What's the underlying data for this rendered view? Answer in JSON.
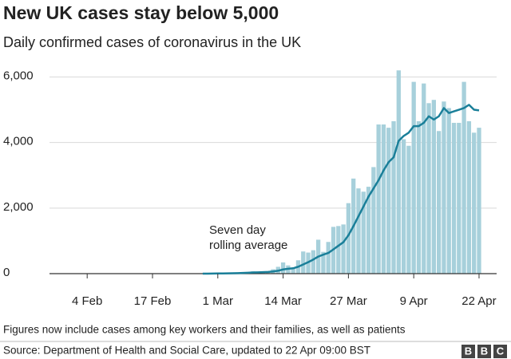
{
  "chart_data": {
    "type": "bar-line",
    "title": "New UK cases stay below 5,000",
    "subtitle": "Daily confirmed cases of coronavirus in the UK",
    "annotation": [
      "Seven day",
      "rolling average"
    ],
    "note": "Figures now include cases among key workers and their families, as well as patients",
    "source": "Source: Department of Health and Social Care, updated to 22 Apr 09:00 BST",
    "logo": [
      "B",
      "B",
      "C"
    ],
    "categories": [
      null,
      null,
      null,
      null,
      null,
      null,
      null,
      "4 Feb",
      null,
      null,
      null,
      null,
      null,
      null,
      null,
      null,
      null,
      null,
      null,
      null,
      "17 Feb",
      null,
      null,
      null,
      null,
      null,
      null,
      null,
      null,
      null,
      null,
      null,
      null,
      "1 Mar",
      null,
      null,
      null,
      null,
      null,
      null,
      null,
      null,
      null,
      null,
      null,
      null,
      "14 Mar",
      null,
      null,
      null,
      null,
      null,
      null,
      null,
      null,
      null,
      null,
      null,
      null,
      "27 Mar",
      null,
      null,
      null,
      null,
      null,
      null,
      null,
      null,
      null,
      null,
      null,
      null,
      "9 Apr",
      null,
      null,
      null,
      null,
      null,
      null,
      null,
      null,
      null,
      null,
      null,
      null,
      "22 Apr",
      null,
      null,
      null
    ],
    "series": [
      {
        "type": "bar",
        "color": "#a7d0db",
        "values": [
          null,
          null,
          null,
          null,
          null,
          null,
          null,
          null,
          null,
          null,
          null,
          null,
          null,
          null,
          null,
          null,
          null,
          null,
          null,
          null,
          null,
          null,
          null,
          null,
          null,
          null,
          null,
          null,
          null,
          null,
          null,
          null,
          null,
          12,
          4,
          11,
          34,
          29,
          48,
          45,
          69,
          43,
          62,
          77,
          134,
          208,
          342,
          251,
          152,
          407,
          676,
          643,
          714,
          1035,
          665,
          967,
          1427,
          1452,
          1500,
          2150,
          2900,
          2600,
          2500,
          2650,
          3250,
          4550,
          4550,
          4450,
          4650,
          6200,
          4100,
          3900,
          5850,
          4650,
          5800,
          5200,
          5300,
          4350,
          5250,
          5050,
          4600,
          4600,
          5850,
          4650,
          4300,
          4450,
          null,
          null,
          null
        ]
      },
      {
        "type": "line",
        "color": "#1a7f99",
        "values": [
          null,
          null,
          null,
          null,
          null,
          null,
          null,
          null,
          null,
          null,
          null,
          null,
          null,
          null,
          null,
          null,
          null,
          null,
          null,
          null,
          null,
          null,
          null,
          null,
          null,
          null,
          null,
          null,
          null,
          null,
          0,
          1,
          3,
          5,
          6,
          8,
          12,
          16,
          22,
          28,
          35,
          39,
          46,
          53,
          66,
          87,
          128,
          150,
          163,
          210,
          280,
          350,
          430,
          520,
          580,
          630,
          740,
          850,
          960,
          1170,
          1450,
          1750,
          2050,
          2350,
          2600,
          2850,
          3150,
          3400,
          3550,
          4050,
          4200,
          4300,
          4500,
          4500,
          4600,
          4800,
          4700,
          4800,
          5050,
          4900,
          4950,
          5000,
          5050,
          5150,
          5000,
          4980,
          null,
          null,
          null
        ]
      }
    ],
    "ylim": [
      0,
      6400
    ],
    "yticks": [
      0,
      {
        "value": 2000,
        "label": "2,000"
      },
      {
        "value": 4000,
        "label": "4,000"
      },
      {
        "value": 6000,
        "label": "6,000"
      }
    ],
    "grid": true
  }
}
